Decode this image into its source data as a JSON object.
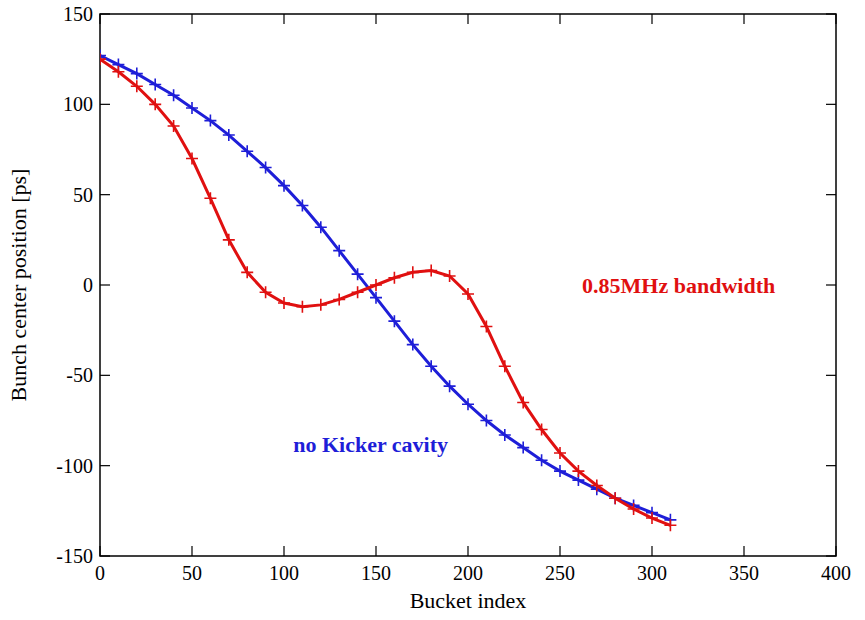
{
  "chart_data": {
    "type": "line",
    "x_label": "Bucket index",
    "y_label": "Bunch center position [ps]",
    "x": [
      0,
      10,
      20,
      30,
      40,
      50,
      60,
      70,
      80,
      90,
      100,
      110,
      120,
      130,
      140,
      150,
      160,
      170,
      180,
      190,
      200,
      210,
      220,
      230,
      240,
      250,
      260,
      270,
      280,
      290,
      300,
      310
    ],
    "series": [
      {
        "name": "no Kicker cavity",
        "color": "#1e1ed8",
        "marker": "cross",
        "line_style": "solid",
        "values": [
          127,
          122,
          117,
          111,
          105,
          98,
          91,
          83,
          74,
          65,
          55,
          44,
          32,
          19,
          6,
          -7,
          -20,
          -33,
          -45,
          -56,
          -66,
          -75,
          -83,
          -90,
          -97,
          -103,
          -108,
          -113,
          -118,
          -122,
          -126,
          -130
        ]
      },
      {
        "name": "0.85MHz bandwidth",
        "color": "#e01010",
        "marker": "cross",
        "line_style": "solid",
        "values": [
          125,
          118,
          110,
          100,
          88,
          70,
          48,
          25,
          7,
          -4,
          -10,
          -12,
          -11,
          -8,
          -4,
          0,
          4,
          7,
          8,
          5,
          -5,
          -23,
          -45,
          -65,
          -80,
          -93,
          -103,
          -111,
          -118,
          -124,
          -129,
          -133
        ]
      }
    ],
    "annotations": [
      {
        "text": "0.85MHz bandwidth",
        "x": 262,
        "y": 0,
        "color": "#e01010"
      },
      {
        "text": "no Kicker cavity",
        "x": 105,
        "y": -88,
        "color": "#1e1ed8"
      }
    ],
    "xlim": [
      0,
      400
    ],
    "xticks": [
      0,
      50,
      100,
      150,
      200,
      250,
      300,
      350,
      400
    ],
    "ylim": [
      -150,
      150
    ],
    "yticks": [
      -150,
      -100,
      -50,
      0,
      50,
      100,
      150
    ],
    "grid": false
  }
}
